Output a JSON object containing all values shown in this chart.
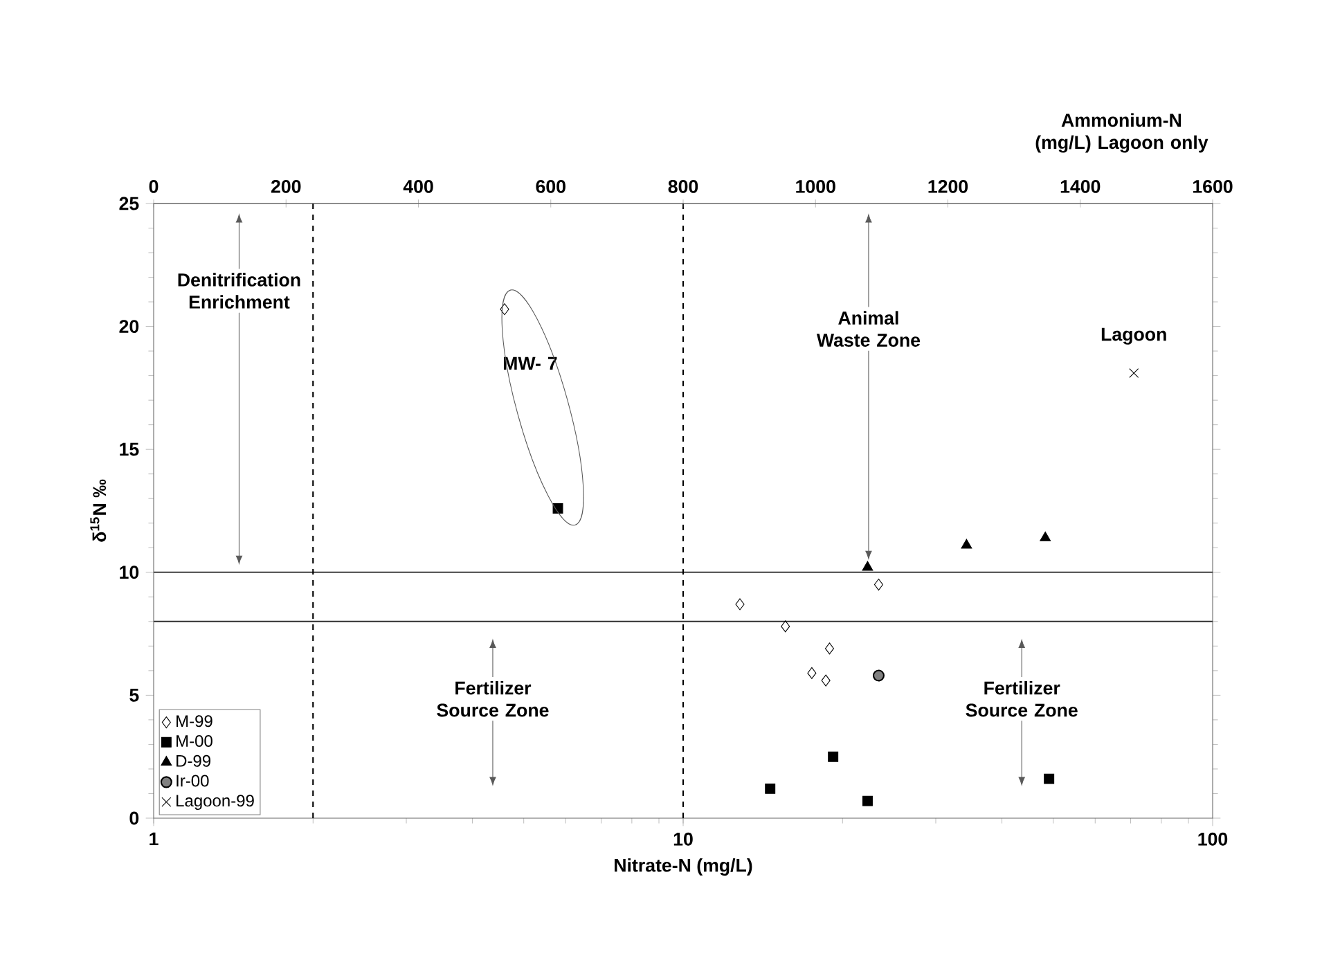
{
  "chart_data": {
    "type": "scatter",
    "xlabel": "Nitrate-N (mg/L)",
    "ylabel": "δ$^{15}$N ‰",
    "x2label": "Ammonium-N (mg/L) Lagoon only",
    "log": "x",
    "xlim": [
      1,
      100
    ],
    "xticks": [
      1,
      10,
      100
    ],
    "x2lim": [
      0,
      1600
    ],
    "x2ticks": [
      0,
      200,
      400,
      600,
      800,
      1000,
      1200,
      1400,
      1600
    ],
    "ylim": [
      0,
      25
    ],
    "yticks": [
      0,
      5,
      10,
      15,
      20,
      25
    ],
    "grid": false,
    "legend": "bottom left",
    "series": [
      {
        "name": "M-99",
        "color": "#000000",
        "marker": "diamond",
        "x": [
          4.6,
          12.8,
          15.6,
          18.9,
          17.5,
          18.6,
          23.4
        ],
        "values": [
          20.7,
          8.7,
          7.8,
          6.9,
          5.9,
          5.6,
          9.5
        ]
      },
      {
        "name": "M-00",
        "color": "#000000",
        "marker": "square",
        "x": [
          5.8,
          14.6,
          19.2,
          22.3,
          49.1
        ],
        "values": [
          12.6,
          1.2,
          2.5,
          0.7,
          1.6
        ]
      },
      {
        "name": "D-99",
        "color": "#000000",
        "marker": "triangle",
        "x": [
          22.3,
          34.3,
          48.3
        ],
        "values": [
          10.2,
          11.1,
          11.4
        ]
      },
      {
        "name": "Ir-00",
        "color": "#000000",
        "marker": "circle",
        "x": [
          23.4
        ],
        "values": [
          5.8
        ]
      },
      {
        "name": "Lagoon-99",
        "color": "#000000",
        "marker": "cross",
        "axis": "x2",
        "x": [
          1481
        ],
        "values": [
          18.1
        ]
      }
    ],
    "ref_lines": [
      {
        "axis": "y",
        "value": 10,
        "color": "#404040",
        "line_style": "solid"
      },
      {
        "axis": "y",
        "value": 8,
        "color": "#404040",
        "line_style": "solid"
      },
      {
        "axis": "x",
        "value": 2,
        "color": "#000000",
        "line_style": "dashed"
      },
      {
        "axis": "x",
        "value": 10,
        "color": "#000000",
        "line_style": "dashed"
      }
    ],
    "annotations": [
      "Denitrification Enrichment",
      "MW- 7",
      "Animal Waste Zone",
      "Lagoon",
      "Fertilizer Source Zone",
      "Fertilizer Source Zone"
    ]
  }
}
